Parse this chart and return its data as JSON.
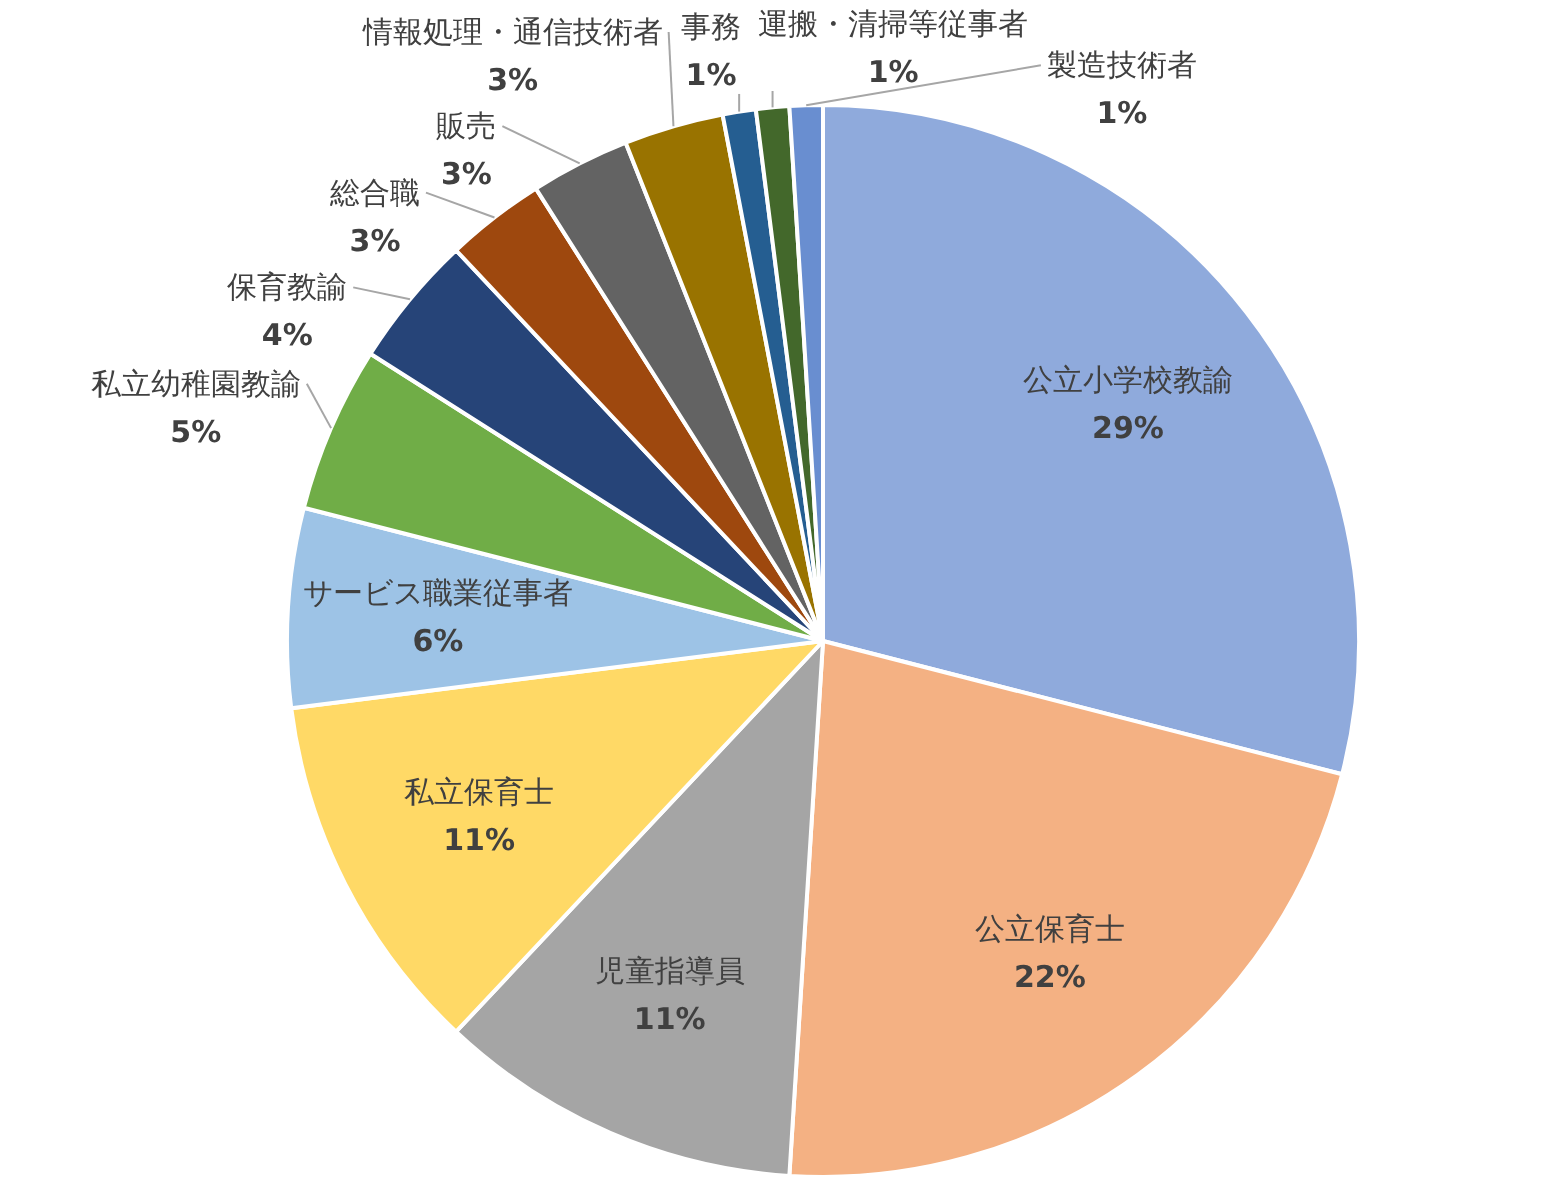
{
  "chart_data": {
    "type": "pie",
    "categories": [
      "公立小学校教諭",
      "公立保育士",
      "児童指導員",
      "私立保育士",
      "サービス職業従事者",
      "私立幼稚園教諭",
      "保育教諭",
      "総合職",
      "販売",
      "情報処理・通信技術者",
      "事務",
      "運搬・清掃等従事者",
      "製造技術者"
    ],
    "values": [
      29,
      22,
      11,
      11,
      6,
      5,
      4,
      3,
      3,
      3,
      1,
      1,
      1
    ],
    "colors": [
      "#8faadc",
      "#f4b183",
      "#a5a5a5",
      "#ffd966",
      "#9dc3e6",
      "#70ad47",
      "#264478",
      "#9e480e",
      "#636363",
      "#997300",
      "#255e91",
      "#43682b",
      "#698ed0"
    ],
    "value_labels": [
      "29%",
      "22%",
      "11%",
      "11%",
      "6%",
      "5%",
      "4%",
      "3%",
      "3%",
      "3%",
      "1%",
      "1%",
      "1%"
    ]
  }
}
